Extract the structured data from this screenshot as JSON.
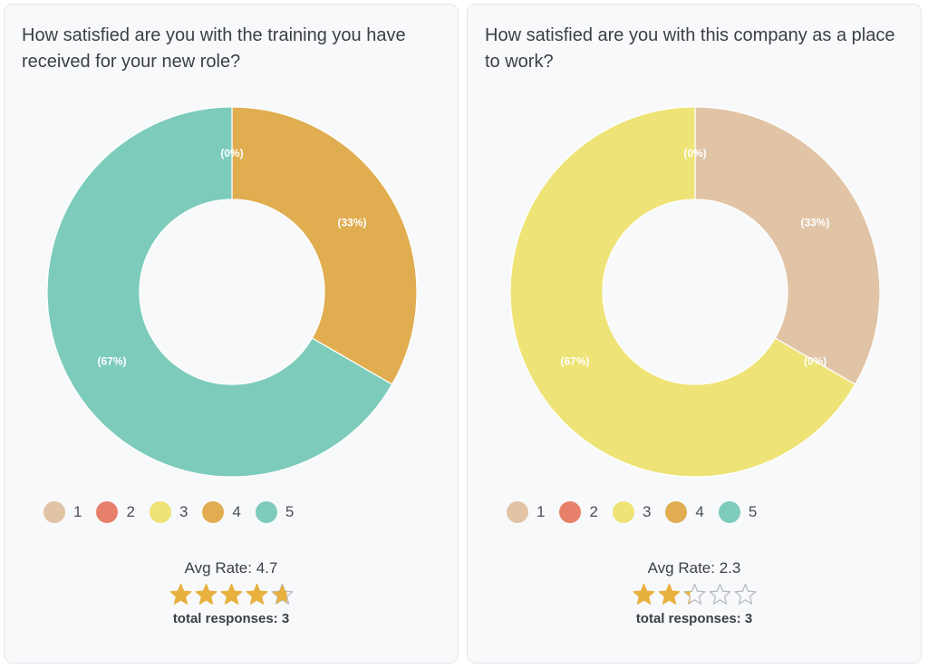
{
  "legend_colors": {
    "1": "#e1c4a6",
    "2": "#e7806b",
    "3": "#eee376",
    "4": "#e0ad50",
    "5": "#7dccbb"
  },
  "star_color": "#e8b13e",
  "star_empty_color": "#b8bcc2",
  "cards": [
    {
      "question": "How satisfied are you with the training you have received for your new role?",
      "avg_rate": "Avg Rate: 4.7",
      "stars": 4.7,
      "total": "total responses: 3",
      "legend": [
        "1",
        "2",
        "3",
        "4",
        "5"
      ]
    },
    {
      "question": "How satisfied are you with this company as a place to work?",
      "avg_rate": "Avg Rate: 2.3",
      "stars": 2.3,
      "total": "total responses: 3",
      "legend": [
        "1",
        "2",
        "3",
        "4",
        "5"
      ]
    }
  ],
  "chart_data": [
    {
      "type": "pie",
      "style": "donut",
      "categories": [
        "1",
        "2",
        "3",
        "4",
        "5"
      ],
      "values": [
        0,
        0,
        0,
        1,
        2
      ],
      "slices": [
        {
          "category": "4",
          "value": 1,
          "label": "(33%)"
        },
        {
          "category": "5",
          "value": 2,
          "label": "(67%)"
        }
      ],
      "extra_labels": [
        "(0%)"
      ],
      "legend_position": "bottom"
    },
    {
      "type": "pie",
      "style": "donut",
      "categories": [
        "1",
        "2",
        "3",
        "4",
        "5"
      ],
      "values": [
        1,
        0,
        2,
        0,
        0
      ],
      "slices": [
        {
          "category": "1",
          "value": 1,
          "label": "(33%)"
        },
        {
          "category": "3",
          "value": 2,
          "label": "(67%)"
        }
      ],
      "extra_labels": [
        "(0%)",
        "(0%)"
      ],
      "legend_position": "bottom"
    }
  ]
}
